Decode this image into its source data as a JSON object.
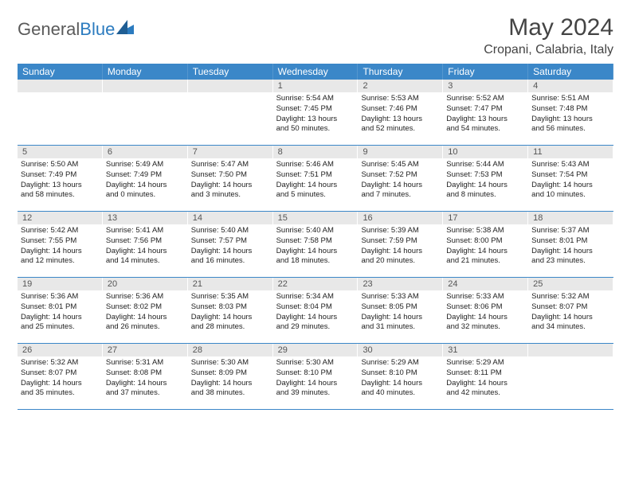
{
  "logo": {
    "text1": "General",
    "text2": "Blue"
  },
  "header": {
    "month": "May 2024",
    "location": "Cropani, Calabria, Italy"
  },
  "colors": {
    "weekday_bg": "#3b87c8",
    "weekday_fg": "#ffffff",
    "daynum_bg": "#e8e8e8",
    "border": "#3b87c8",
    "logo_gray": "#5a5a5a",
    "logo_blue": "#2b7bbf"
  },
  "weekdays": [
    "Sunday",
    "Monday",
    "Tuesday",
    "Wednesday",
    "Thursday",
    "Friday",
    "Saturday"
  ],
  "weeks": [
    [
      {
        "n": "",
        "lines": []
      },
      {
        "n": "",
        "lines": []
      },
      {
        "n": "",
        "lines": []
      },
      {
        "n": "1",
        "lines": [
          "Sunrise: 5:54 AM",
          "Sunset: 7:45 PM",
          "Daylight: 13 hours",
          "and 50 minutes."
        ]
      },
      {
        "n": "2",
        "lines": [
          "Sunrise: 5:53 AM",
          "Sunset: 7:46 PM",
          "Daylight: 13 hours",
          "and 52 minutes."
        ]
      },
      {
        "n": "3",
        "lines": [
          "Sunrise: 5:52 AM",
          "Sunset: 7:47 PM",
          "Daylight: 13 hours",
          "and 54 minutes."
        ]
      },
      {
        "n": "4",
        "lines": [
          "Sunrise: 5:51 AM",
          "Sunset: 7:48 PM",
          "Daylight: 13 hours",
          "and 56 minutes."
        ]
      }
    ],
    [
      {
        "n": "5",
        "lines": [
          "Sunrise: 5:50 AM",
          "Sunset: 7:49 PM",
          "Daylight: 13 hours",
          "and 58 minutes."
        ]
      },
      {
        "n": "6",
        "lines": [
          "Sunrise: 5:49 AM",
          "Sunset: 7:49 PM",
          "Daylight: 14 hours",
          "and 0 minutes."
        ]
      },
      {
        "n": "7",
        "lines": [
          "Sunrise: 5:47 AM",
          "Sunset: 7:50 PM",
          "Daylight: 14 hours",
          "and 3 minutes."
        ]
      },
      {
        "n": "8",
        "lines": [
          "Sunrise: 5:46 AM",
          "Sunset: 7:51 PM",
          "Daylight: 14 hours",
          "and 5 minutes."
        ]
      },
      {
        "n": "9",
        "lines": [
          "Sunrise: 5:45 AM",
          "Sunset: 7:52 PM",
          "Daylight: 14 hours",
          "and 7 minutes."
        ]
      },
      {
        "n": "10",
        "lines": [
          "Sunrise: 5:44 AM",
          "Sunset: 7:53 PM",
          "Daylight: 14 hours",
          "and 8 minutes."
        ]
      },
      {
        "n": "11",
        "lines": [
          "Sunrise: 5:43 AM",
          "Sunset: 7:54 PM",
          "Daylight: 14 hours",
          "and 10 minutes."
        ]
      }
    ],
    [
      {
        "n": "12",
        "lines": [
          "Sunrise: 5:42 AM",
          "Sunset: 7:55 PM",
          "Daylight: 14 hours",
          "and 12 minutes."
        ]
      },
      {
        "n": "13",
        "lines": [
          "Sunrise: 5:41 AM",
          "Sunset: 7:56 PM",
          "Daylight: 14 hours",
          "and 14 minutes."
        ]
      },
      {
        "n": "14",
        "lines": [
          "Sunrise: 5:40 AM",
          "Sunset: 7:57 PM",
          "Daylight: 14 hours",
          "and 16 minutes."
        ]
      },
      {
        "n": "15",
        "lines": [
          "Sunrise: 5:40 AM",
          "Sunset: 7:58 PM",
          "Daylight: 14 hours",
          "and 18 minutes."
        ]
      },
      {
        "n": "16",
        "lines": [
          "Sunrise: 5:39 AM",
          "Sunset: 7:59 PM",
          "Daylight: 14 hours",
          "and 20 minutes."
        ]
      },
      {
        "n": "17",
        "lines": [
          "Sunrise: 5:38 AM",
          "Sunset: 8:00 PM",
          "Daylight: 14 hours",
          "and 21 minutes."
        ]
      },
      {
        "n": "18",
        "lines": [
          "Sunrise: 5:37 AM",
          "Sunset: 8:01 PM",
          "Daylight: 14 hours",
          "and 23 minutes."
        ]
      }
    ],
    [
      {
        "n": "19",
        "lines": [
          "Sunrise: 5:36 AM",
          "Sunset: 8:01 PM",
          "Daylight: 14 hours",
          "and 25 minutes."
        ]
      },
      {
        "n": "20",
        "lines": [
          "Sunrise: 5:36 AM",
          "Sunset: 8:02 PM",
          "Daylight: 14 hours",
          "and 26 minutes."
        ]
      },
      {
        "n": "21",
        "lines": [
          "Sunrise: 5:35 AM",
          "Sunset: 8:03 PM",
          "Daylight: 14 hours",
          "and 28 minutes."
        ]
      },
      {
        "n": "22",
        "lines": [
          "Sunrise: 5:34 AM",
          "Sunset: 8:04 PM",
          "Daylight: 14 hours",
          "and 29 minutes."
        ]
      },
      {
        "n": "23",
        "lines": [
          "Sunrise: 5:33 AM",
          "Sunset: 8:05 PM",
          "Daylight: 14 hours",
          "and 31 minutes."
        ]
      },
      {
        "n": "24",
        "lines": [
          "Sunrise: 5:33 AM",
          "Sunset: 8:06 PM",
          "Daylight: 14 hours",
          "and 32 minutes."
        ]
      },
      {
        "n": "25",
        "lines": [
          "Sunrise: 5:32 AM",
          "Sunset: 8:07 PM",
          "Daylight: 14 hours",
          "and 34 minutes."
        ]
      }
    ],
    [
      {
        "n": "26",
        "lines": [
          "Sunrise: 5:32 AM",
          "Sunset: 8:07 PM",
          "Daylight: 14 hours",
          "and 35 minutes."
        ]
      },
      {
        "n": "27",
        "lines": [
          "Sunrise: 5:31 AM",
          "Sunset: 8:08 PM",
          "Daylight: 14 hours",
          "and 37 minutes."
        ]
      },
      {
        "n": "28",
        "lines": [
          "Sunrise: 5:30 AM",
          "Sunset: 8:09 PM",
          "Daylight: 14 hours",
          "and 38 minutes."
        ]
      },
      {
        "n": "29",
        "lines": [
          "Sunrise: 5:30 AM",
          "Sunset: 8:10 PM",
          "Daylight: 14 hours",
          "and 39 minutes."
        ]
      },
      {
        "n": "30",
        "lines": [
          "Sunrise: 5:29 AM",
          "Sunset: 8:10 PM",
          "Daylight: 14 hours",
          "and 40 minutes."
        ]
      },
      {
        "n": "31",
        "lines": [
          "Sunrise: 5:29 AM",
          "Sunset: 8:11 PM",
          "Daylight: 14 hours",
          "and 42 minutes."
        ]
      },
      {
        "n": "",
        "lines": []
      }
    ]
  ]
}
